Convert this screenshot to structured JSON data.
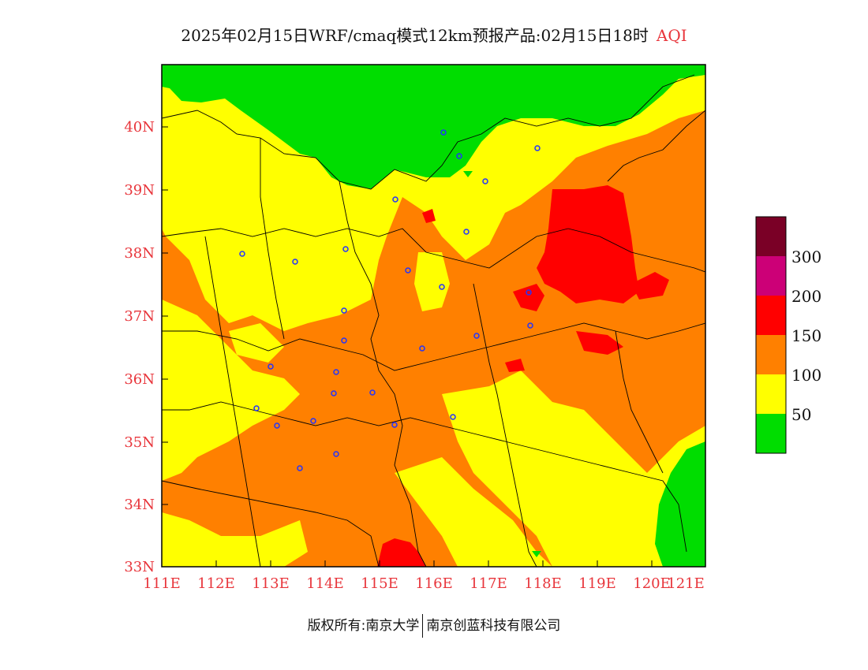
{
  "title": {
    "main": "2025年02月15日WRF/cmaq模式12km预报产品:02月15日18时",
    "product": "AQI"
  },
  "axes": {
    "x_ticks": [
      "111E",
      "112E",
      "113E",
      "114E",
      "115E",
      "116E",
      "117E",
      "118E",
      "119E",
      "120E",
      "121E"
    ],
    "y_ticks": [
      "40N",
      "39N",
      "38N",
      "37N",
      "36N",
      "35N",
      "34N",
      "33N"
    ],
    "tick_color": "#e8353b"
  },
  "legend": {
    "labels": [
      "300",
      "200",
      "150",
      "100",
      "50"
    ],
    "colors": [
      "#7a0026",
      "#cc0077",
      "#ff0000",
      "#ff8000",
      "#ffff00",
      "#00dd00"
    ]
  },
  "footer": {
    "copyright": "版权所有:南京大学",
    "company": "南京创蓝科技有限公司"
  }
}
